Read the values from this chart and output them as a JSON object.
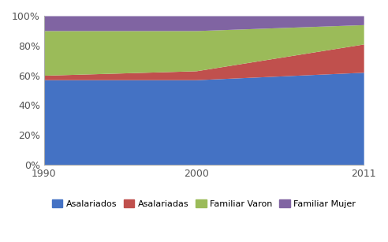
{
  "years": [
    1990,
    2000,
    2011
  ],
  "series": {
    "Asalariados": [
      57,
      57,
      62
    ],
    "Asalariadas": [
      3,
      6,
      19
    ],
    "Familiar Varon": [
      30,
      27,
      13
    ],
    "Familiar Mujer": [
      10,
      10,
      6
    ]
  },
  "colors": {
    "Asalariados": "#4472C4",
    "Asalariadas": "#C0504D",
    "Familiar Varon": "#9BBB59",
    "Familiar Mujer": "#8064A2"
  },
  "yticks": [
    0,
    20,
    40,
    60,
    80,
    100
  ],
  "ytick_labels": [
    "0%",
    "20%",
    "40%",
    "60%",
    "80%",
    "100%"
  ],
  "xticks": [
    1990,
    2000,
    2011
  ],
  "background_color": "#FFFFFF",
  "legend_order": [
    "Asalariados",
    "Asalariadas",
    "Familiar Varon",
    "Familiar Mujer"
  ]
}
